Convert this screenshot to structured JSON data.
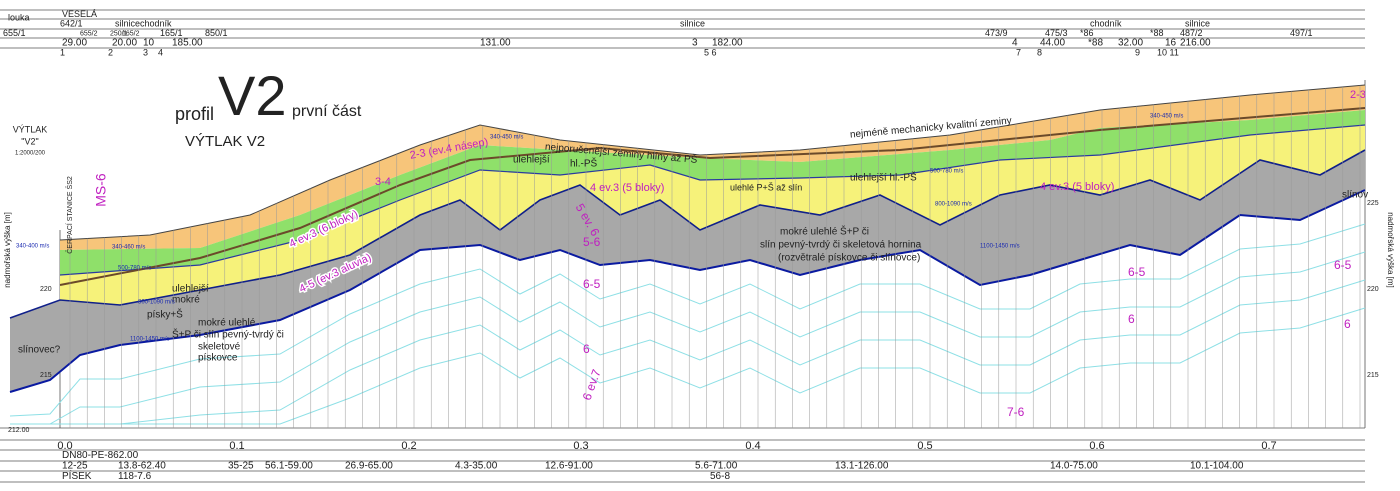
{
  "header": {
    "village": "VESELÁ",
    "row2": [
      "louka",
      "642/1",
      "silnice",
      "chodník",
      "silnice",
      "chodník",
      "silnice"
    ],
    "parcels": [
      "655/1",
      "655/2",
      "250/1",
      "165/2",
      "165/1",
      "850/1",
      "473/9",
      "475/3",
      "*86",
      "*88",
      "487/2",
      "497/1"
    ],
    "lengths": [
      "29.00",
      "20.00",
      "10",
      "185.00",
      "131.00",
      "3",
      "182.00",
      "4",
      "44.00",
      "*88",
      "32.00",
      "16",
      "216.00"
    ],
    "points": [
      "1",
      "2",
      "3",
      "4",
      "5 6",
      "7",
      "8",
      "9",
      "10 11"
    ]
  },
  "title": {
    "profil": "profil",
    "name": "V2",
    "part": "první část",
    "subtitle": "VÝTLAK V2"
  },
  "legend_left": [
    "VÝTLAK",
    "\"V2\"",
    "1:2000/200"
  ],
  "axis": {
    "label": "nadmořská výška [m]",
    "left_ticks": [
      "220",
      "215"
    ],
    "right_ticks": [
      "225",
      "220",
      "215"
    ],
    "base": "212.00"
  },
  "scale": [
    "0.0",
    "0.1",
    "0.2",
    "0.3",
    "0.4",
    "0.5",
    "0.6",
    "0.7"
  ],
  "station": "ČERPACÍ STANICE ŠS2",
  "probe": "MS-6",
  "classes": [
    "2-3 (ev.4 násep)",
    "3-4",
    "4 ev.3 (6 bloky)",
    "4-5 (ev.3 aluvia)",
    "4 ev.3 (5 bloky)",
    "4 ev.3 (5 bloky)",
    "5 ev. 6",
    "5-6",
    "6-5",
    "6",
    "6 ev.7",
    "6-5",
    "6",
    "6-5",
    "6",
    "7-6",
    "2-3"
  ],
  "descriptions": [
    "nejporušenější zeminy hlíny až PŠ",
    "nejméně mechanicky kvalitní zeminy",
    "ulehlejší",
    "hl.-PŠ",
    "ulehlejší  hl.-PŠ",
    "ulehlé P+Š až slín",
    "mokré ulehlé Š+P či",
    "slín pevný-tvrdý či skeletová hornina",
    "(rozvětralé pískovce či slínovce)",
    "ulehlejší",
    "mokré",
    "písky+Š",
    "mokré ulehlé",
    "Š+P či slín pevný-tvrdý či",
    "skeletové",
    "pískovce",
    "slínovec?",
    "slínov"
  ],
  "velocities": [
    "340-450 m/s",
    "340-450 m/s",
    "500-780 m/s",
    "800-1090 m/s",
    "1100-1450 m/s",
    "340-460 m/s",
    "500-780 m/s",
    "800-1090 m/s",
    "1100-1450 m/s",
    "340-400 m/s"
  ],
  "footer": {
    "pipe": "DN80-PE-862.00",
    "segments": [
      "12-25",
      "13.8-62.40",
      "35-25",
      "56.1-59.00",
      "26.9-65.00",
      "4.3-35.00",
      "12.6-91.00",
      "5.6-71.00",
      "13.1-126.00",
      "14.0-75.00",
      "10.1-104.00"
    ],
    "soil": [
      "PÍSEK",
      "118-7.6",
      "56-8"
    ]
  }
}
